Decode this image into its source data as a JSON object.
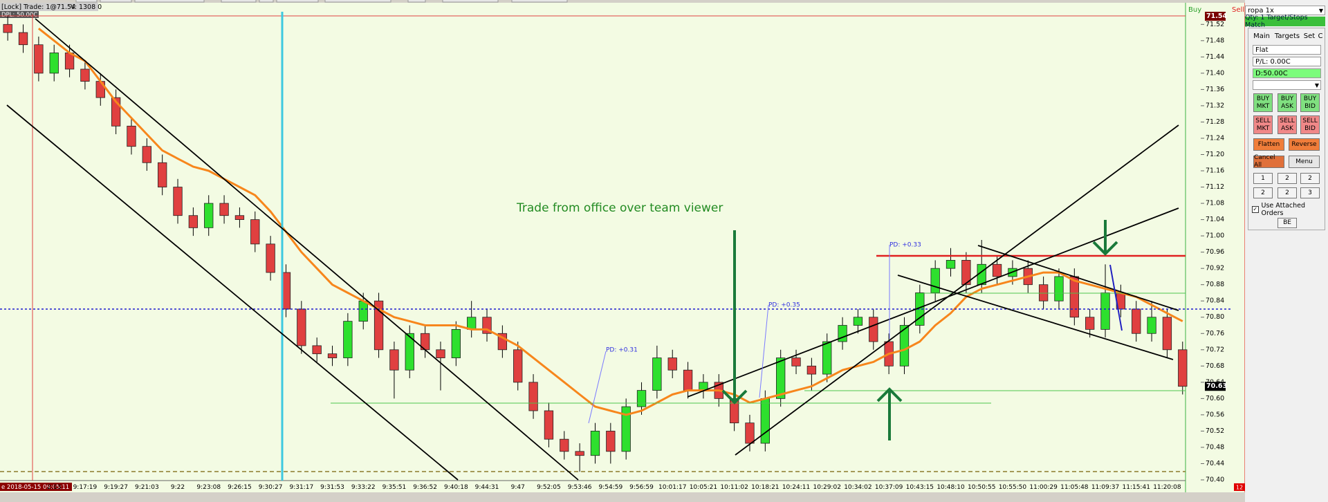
{
  "header": {
    "trade": "[Lock] Trade: 1@71.54",
    "volume": "V: 1308 0",
    "dpl": "DPL: 50.00C",
    "buy": "Buy",
    "sell": "Sell",
    "alert": "12"
  },
  "chart_data": {
    "type": "candlestick",
    "categories": [
      null,
      "e 2018-05-15 09:05:11",
      null,
      "2:13",
      null,
      "9:17:19",
      null,
      "9:19:27",
      null,
      "9:21:03",
      null,
      "9:22",
      null,
      "9:23:08",
      null,
      "9:26:15",
      null,
      "9:30:27",
      null,
      "9:31:17",
      null,
      "9:31:53",
      null,
      "9:33:22",
      null,
      "9:35:51",
      null,
      "9:36:52",
      null,
      "9:40:18",
      null,
      "9:44:31",
      null,
      "9:47",
      null,
      "9:52:05",
      null,
      "9:53:46",
      null,
      "9:54:59",
      null,
      "9:56:59",
      null,
      "10:01:17",
      null,
      "10:05:21",
      null,
      "10:11:02",
      null,
      "10:18:21",
      null,
      "10:24:11",
      null,
      "10:29:02",
      null,
      "10:34:02",
      null,
      "10:37:09",
      null,
      "10:43:15",
      null,
      "10:48:10",
      null,
      "10:50:55",
      null,
      "10:55:50",
      null,
      "11:00:29",
      null,
      "11:05:48",
      null,
      "11:09:37",
      null,
      "11:15:41",
      null,
      "11:20:08",
      null
    ],
    "open": [
      71.52,
      71.5,
      71.47,
      71.4,
      71.45,
      71.41,
      71.38,
      71.34,
      71.27,
      71.22,
      71.18,
      71.12,
      71.05,
      71.02,
      71.08,
      71.05,
      71.04,
      70.98,
      70.91,
      70.82,
      70.73,
      70.71,
      70.7,
      70.79,
      70.84,
      70.72,
      70.67,
      70.76,
      70.72,
      70.7,
      70.77,
      70.8,
      70.76,
      70.72,
      70.64,
      70.57,
      70.5,
      70.47,
      70.46,
      70.52,
      70.47,
      70.58,
      70.62,
      70.7,
      70.67,
      70.62,
      70.64,
      70.6,
      70.54,
      70.49,
      70.6,
      70.7,
      70.68,
      70.66,
      70.74,
      70.78,
      70.8,
      70.74,
      70.68,
      70.78,
      70.86,
      70.92,
      70.94,
      70.88,
      70.93,
      70.9,
      70.92,
      70.88,
      70.84,
      70.9,
      70.8,
      70.77,
      70.86,
      70.82,
      70.76,
      70.8,
      70.72
    ],
    "high": [
      71.54,
      71.52,
      71.49,
      71.47,
      71.47,
      71.43,
      71.4,
      71.36,
      71.29,
      71.24,
      71.2,
      71.14,
      71.07,
      71.1,
      71.1,
      71.07,
      71.06,
      71.0,
      70.93,
      70.84,
      70.75,
      70.73,
      70.81,
      70.86,
      70.86,
      70.74,
      70.78,
      70.78,
      70.74,
      70.79,
      70.84,
      70.82,
      70.78,
      70.74,
      70.66,
      70.59,
      70.52,
      70.49,
      70.54,
      70.54,
      70.6,
      70.64,
      70.73,
      70.72,
      70.69,
      70.66,
      70.66,
      70.62,
      70.56,
      70.62,
      70.72,
      70.72,
      70.7,
      70.76,
      70.8,
      70.82,
      70.82,
      70.76,
      70.8,
      70.88,
      70.94,
      70.97,
      70.96,
      70.99,
      70.95,
      70.94,
      70.94,
      70.9,
      70.92,
      70.92,
      70.82,
      70.93,
      70.88,
      70.84,
      70.84,
      70.82,
      70.74
    ],
    "low": [
      71.48,
      71.45,
      71.38,
      71.38,
      71.39,
      71.36,
      71.32,
      71.25,
      71.2,
      71.16,
      71.1,
      71.03,
      71.0,
      71.0,
      71.03,
      71.02,
      70.96,
      70.89,
      70.8,
      70.71,
      70.69,
      70.68,
      70.68,
      70.77,
      70.7,
      70.6,
      70.65,
      70.7,
      70.62,
      70.68,
      70.75,
      70.74,
      70.7,
      70.62,
      70.55,
      70.48,
      70.45,
      70.42,
      70.44,
      70.44,
      70.45,
      70.56,
      70.6,
      70.65,
      70.6,
      70.6,
      70.58,
      70.52,
      70.47,
      70.47,
      70.58,
      70.66,
      70.62,
      70.64,
      70.72,
      70.76,
      70.72,
      70.66,
      70.66,
      70.76,
      70.84,
      70.9,
      70.86,
      70.86,
      70.88,
      70.88,
      70.86,
      70.82,
      70.82,
      70.78,
      70.75,
      70.75,
      70.8,
      70.74,
      70.74,
      70.7,
      70.61
    ],
    "close": [
      71.5,
      71.47,
      71.4,
      71.45,
      71.41,
      71.38,
      71.34,
      71.27,
      71.22,
      71.18,
      71.12,
      71.05,
      71.02,
      71.08,
      71.05,
      71.04,
      70.98,
      70.91,
      70.82,
      70.73,
      70.71,
      70.7,
      70.79,
      70.84,
      70.72,
      70.67,
      70.76,
      70.72,
      70.7,
      70.77,
      70.8,
      70.76,
      70.72,
      70.64,
      70.57,
      70.5,
      70.47,
      70.46,
      70.52,
      70.47,
      70.58,
      70.62,
      70.7,
      70.67,
      70.62,
      70.64,
      70.6,
      70.54,
      70.49,
      70.6,
      70.7,
      70.68,
      70.66,
      70.74,
      70.78,
      70.8,
      70.74,
      70.68,
      70.78,
      70.86,
      70.92,
      70.94,
      70.88,
      70.93,
      70.9,
      70.92,
      70.88,
      70.84,
      70.9,
      70.8,
      70.77,
      70.86,
      70.82,
      70.76,
      70.8,
      70.72,
      70.63
    ],
    "up_color": "#2ee02e",
    "down_color": "#e04040",
    "line_series": [
      {
        "color": "#f7861c",
        "values": [
          null,
          null,
          71.51,
          71.48,
          71.45,
          71.43,
          71.38,
          71.33,
          71.29,
          71.25,
          71.21,
          71.19,
          71.17,
          71.16,
          71.14,
          71.12,
          71.1,
          71.06,
          71.01,
          70.96,
          70.92,
          70.88,
          70.86,
          70.84,
          70.82,
          70.8,
          70.79,
          70.78,
          70.78,
          70.78,
          70.77,
          70.77,
          70.75,
          70.73,
          70.7,
          70.67,
          70.64,
          70.61,
          70.58,
          70.57,
          70.56,
          70.57,
          70.59,
          70.61,
          70.62,
          70.62,
          70.62,
          70.61,
          70.59,
          70.6,
          70.61,
          70.62,
          70.63,
          70.65,
          70.67,
          70.68,
          70.69,
          70.71,
          70.72,
          70.74,
          70.78,
          70.81,
          70.85,
          70.87,
          70.88,
          70.89,
          70.9,
          70.91,
          70.91,
          70.89,
          70.88,
          70.87,
          70.86,
          70.85,
          70.83,
          70.81,
          70.79
        ]
      }
    ],
    "price_markers": [
      {
        "value": 71.54,
        "color": "#7a0000"
      },
      {
        "value": 70.63,
        "color": "#000000"
      }
    ],
    "ylim": [
      70.4,
      71.58
    ],
    "yticks": [
      71.52,
      71.48,
      71.44,
      {
        "value": 71.4,
        "label": "71.40"
      },
      71.36,
      71.32,
      71.28,
      71.24,
      {
        "value": 71.2,
        "label": "71.20"
      },
      71.16,
      71.12,
      71.08,
      71.04,
      {
        "value": 71,
        "label": "71.00"
      },
      70.96,
      70.92,
      70.88,
      70.84,
      {
        "value": 70.8,
        "label": "70.80"
      },
      70.76,
      70.72,
      70.68,
      70.64,
      {
        "value": 70.6,
        "label": "70.60"
      },
      70.56,
      70.52,
      70.48,
      70.44,
      {
        "value": 70.4,
        "label": "70.40"
      }
    ],
    "grid": false,
    "annotations": [
      "Trade from office over team viewer",
      "PD: +0.31",
      "PD: +0.35",
      "PD: +0.33"
    ]
  },
  "panel": {
    "symbol": "ropa 1x",
    "qty": "Qty: 1 Target/Stops Match",
    "tabs": [
      "Main",
      "Targets",
      "Set",
      "C"
    ],
    "position": "Flat",
    "pl": "P/L: 0.00C",
    "d": "D:50.00C",
    "buy_buttons": [
      [
        "BUY",
        "MKT"
      ],
      [
        "BUY",
        "ASK"
      ],
      [
        "BUY",
        "BID"
      ]
    ],
    "sell_buttons": [
      [
        "SELL",
        "MKT"
      ],
      [
        "SELL",
        "ASK"
      ],
      [
        "SELL",
        "BID"
      ]
    ],
    "flatten": "Flatten",
    "reverse": "Reverse",
    "cancel_all": "Cancel All",
    "menu": "Menu",
    "qty_buttons": [
      "1",
      "2",
      "2",
      "2",
      "2",
      "3"
    ],
    "attached": "Use Attached Orders",
    "be": "BE"
  }
}
